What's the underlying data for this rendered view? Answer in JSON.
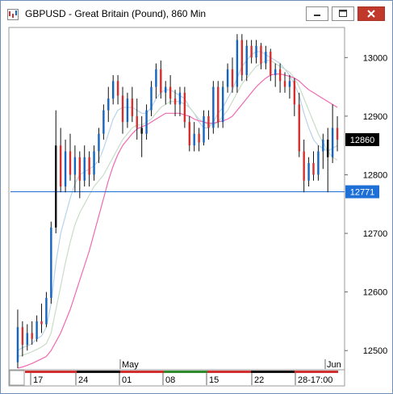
{
  "window": {
    "title": "GBPUSD - Great Britain (Pound), 860 Min"
  },
  "colors": {
    "up": "#1565c0",
    "down": "#d32f2f",
    "neutral": "#111111",
    "ma_fast": "#b9d3e8",
    "ma_mid": "#c9dcc9",
    "ma_slow": "#f06ab0",
    "hline": "#1e6fd6",
    "badge_current": "#000000",
    "badge_line": "#1e6fd6"
  },
  "chart_data": {
    "type": "candlestick",
    "y_ticks": [
      "13000",
      "12900",
      "12800",
      "12700",
      "12600",
      "12500"
    ],
    "ylim": [
      12470,
      13050
    ],
    "current_price_label": "12860",
    "current_price": 12860,
    "hline_label": "12771",
    "hline_price": 12771,
    "month_labels": [
      "May",
      "Jun"
    ],
    "date_labels": [
      "17",
      "24",
      "01",
      "08",
      "15",
      "22",
      "28-17:00"
    ],
    "bars": [
      {
        "o": 12480,
        "h": 12570,
        "l": 12470,
        "c": 12540,
        "d": "up"
      },
      {
        "o": 12540,
        "h": 12550,
        "l": 12490,
        "c": 12510,
        "d": "down"
      },
      {
        "o": 12510,
        "h": 12545,
        "l": 12500,
        "c": 12530,
        "d": "up"
      },
      {
        "o": 12530,
        "h": 12550,
        "l": 12510,
        "c": 12520,
        "d": "down"
      },
      {
        "o": 12520,
        "h": 12560,
        "l": 12515,
        "c": 12550,
        "d": "up"
      },
      {
        "o": 12550,
        "h": 12580,
        "l": 12530,
        "c": 12545,
        "d": "down"
      },
      {
        "o": 12545,
        "h": 12600,
        "l": 12540,
        "c": 12590,
        "d": "up"
      },
      {
        "o": 12590,
        "h": 12720,
        "l": 12580,
        "c": 12710,
        "d": "up"
      },
      {
        "o": 12710,
        "h": 12910,
        "l": 12700,
        "c": 12850,
        "d": "neutral"
      },
      {
        "o": 12850,
        "h": 12880,
        "l": 12770,
        "c": 12780,
        "d": "down"
      },
      {
        "o": 12780,
        "h": 12860,
        "l": 12770,
        "c": 12840,
        "d": "up"
      },
      {
        "o": 12840,
        "h": 12870,
        "l": 12790,
        "c": 12800,
        "d": "down"
      },
      {
        "o": 12800,
        "h": 12850,
        "l": 12770,
        "c": 12830,
        "d": "up"
      },
      {
        "o": 12830,
        "h": 12840,
        "l": 12760,
        "c": 12790,
        "d": "down"
      },
      {
        "o": 12790,
        "h": 12850,
        "l": 12780,
        "c": 12830,
        "d": "up"
      },
      {
        "o": 12830,
        "h": 12840,
        "l": 12780,
        "c": 12800,
        "d": "down"
      },
      {
        "o": 12800,
        "h": 12850,
        "l": 12790,
        "c": 12840,
        "d": "up"
      },
      {
        "o": 12840,
        "h": 12880,
        "l": 12820,
        "c": 12870,
        "d": "up"
      },
      {
        "o": 12870,
        "h": 12920,
        "l": 12860,
        "c": 12910,
        "d": "up"
      },
      {
        "o": 12910,
        "h": 12950,
        "l": 12890,
        "c": 12930,
        "d": "up"
      },
      {
        "o": 12930,
        "h": 12970,
        "l": 12920,
        "c": 12960,
        "d": "up"
      },
      {
        "o": 12960,
        "h": 12970,
        "l": 12920,
        "c": 12935,
        "d": "down"
      },
      {
        "o": 12935,
        "h": 12950,
        "l": 12870,
        "c": 12890,
        "d": "down"
      },
      {
        "o": 12890,
        "h": 12940,
        "l": 12880,
        "c": 12930,
        "d": "up"
      },
      {
        "o": 12930,
        "h": 12950,
        "l": 12890,
        "c": 12900,
        "d": "down"
      },
      {
        "o": 12900,
        "h": 12930,
        "l": 12860,
        "c": 12880,
        "d": "down"
      },
      {
        "o": 12880,
        "h": 12900,
        "l": 12830,
        "c": 12870,
        "d": "neutral"
      },
      {
        "o": 12870,
        "h": 12920,
        "l": 12860,
        "c": 12910,
        "d": "up"
      },
      {
        "o": 12910,
        "h": 12960,
        "l": 12900,
        "c": 12950,
        "d": "up"
      },
      {
        "o": 12950,
        "h": 12990,
        "l": 12930,
        "c": 12980,
        "d": "up"
      },
      {
        "o": 12980,
        "h": 12995,
        "l": 12930,
        "c": 12940,
        "d": "down"
      },
      {
        "o": 12940,
        "h": 12960,
        "l": 12920,
        "c": 12950,
        "d": "up"
      },
      {
        "o": 12950,
        "h": 12970,
        "l": 12920,
        "c": 12930,
        "d": "down"
      },
      {
        "o": 12930,
        "h": 12945,
        "l": 12900,
        "c": 12920,
        "d": "down"
      },
      {
        "o": 12920,
        "h": 12950,
        "l": 12900,
        "c": 12940,
        "d": "up"
      },
      {
        "o": 12940,
        "h": 12950,
        "l": 12880,
        "c": 12890,
        "d": "down"
      },
      {
        "o": 12890,
        "h": 12900,
        "l": 12840,
        "c": 12850,
        "d": "down"
      },
      {
        "o": 12850,
        "h": 12890,
        "l": 12840,
        "c": 12870,
        "d": "up"
      },
      {
        "o": 12870,
        "h": 12880,
        "l": 12840,
        "c": 12855,
        "d": "down"
      },
      {
        "o": 12855,
        "h": 12910,
        "l": 12850,
        "c": 12900,
        "d": "up"
      },
      {
        "o": 12900,
        "h": 12910,
        "l": 12860,
        "c": 12880,
        "d": "down"
      },
      {
        "o": 12880,
        "h": 12960,
        "l": 12870,
        "c": 12950,
        "d": "up"
      },
      {
        "o": 12950,
        "h": 12960,
        "l": 12880,
        "c": 12890,
        "d": "down"
      },
      {
        "o": 12890,
        "h": 12960,
        "l": 12880,
        "c": 12950,
        "d": "up"
      },
      {
        "o": 12950,
        "h": 12990,
        "l": 12940,
        "c": 12980,
        "d": "up"
      },
      {
        "o": 12980,
        "h": 13000,
        "l": 12940,
        "c": 12950,
        "d": "down"
      },
      {
        "o": 12950,
        "h": 13040,
        "l": 12940,
        "c": 13030,
        "d": "up"
      },
      {
        "o": 13030,
        "h": 13040,
        "l": 12960,
        "c": 12970,
        "d": "down"
      },
      {
        "o": 12970,
        "h": 13030,
        "l": 12960,
        "c": 13020,
        "d": "up"
      },
      {
        "o": 13020,
        "h": 13030,
        "l": 12990,
        "c": 13000,
        "d": "down"
      },
      {
        "o": 13000,
        "h": 13030,
        "l": 12990,
        "c": 13020,
        "d": "up"
      },
      {
        "o": 13020,
        "h": 13025,
        "l": 12980,
        "c": 12990,
        "d": "down"
      },
      {
        "o": 12990,
        "h": 13020,
        "l": 12980,
        "c": 13010,
        "d": "up"
      },
      {
        "o": 13010,
        "h": 13015,
        "l": 12960,
        "c": 12970,
        "d": "down"
      },
      {
        "o": 12970,
        "h": 12990,
        "l": 12950,
        "c": 12980,
        "d": "up"
      },
      {
        "o": 12980,
        "h": 12990,
        "l": 12940,
        "c": 12960,
        "d": "down"
      },
      {
        "o": 12960,
        "h": 12975,
        "l": 12940,
        "c": 12950,
        "d": "down"
      },
      {
        "o": 12950,
        "h": 12970,
        "l": 12930,
        "c": 12960,
        "d": "up"
      },
      {
        "o": 12960,
        "h": 12965,
        "l": 12900,
        "c": 12920,
        "d": "down"
      },
      {
        "o": 12920,
        "h": 12940,
        "l": 12830,
        "c": 12840,
        "d": "down"
      },
      {
        "o": 12840,
        "h": 12860,
        "l": 12770,
        "c": 12790,
        "d": "down"
      },
      {
        "o": 12790,
        "h": 12830,
        "l": 12780,
        "c": 12820,
        "d": "up"
      },
      {
        "o": 12820,
        "h": 12840,
        "l": 12790,
        "c": 12800,
        "d": "down"
      },
      {
        "o": 12800,
        "h": 12850,
        "l": 12790,
        "c": 12840,
        "d": "up"
      },
      {
        "o": 12840,
        "h": 12870,
        "l": 12810,
        "c": 12860,
        "d": "up"
      },
      {
        "o": 12860,
        "h": 12880,
        "l": 12770,
        "c": 12830,
        "d": "neutral"
      },
      {
        "o": 12830,
        "h": 12920,
        "l": 12820,
        "c": 12880,
        "d": "up"
      },
      {
        "o": 12880,
        "h": 12900,
        "l": 12840,
        "c": 12860,
        "d": "down"
      }
    ],
    "ma_fast": [
      12500,
      12505,
      12508,
      12512,
      12520,
      12525,
      12540,
      12580,
      12650,
      12700,
      12730,
      12760,
      12785,
      12800,
      12805,
      12810,
      12815,
      12825,
      12845,
      12870,
      12895,
      12910,
      12915,
      12915,
      12915,
      12910,
      12905,
      12905,
      12915,
      12930,
      12940,
      12945,
      12945,
      12940,
      12935,
      12930,
      12915,
      12905,
      12890,
      12880,
      12880,
      12890,
      12905,
      12915,
      12930,
      12945,
      12965,
      12985,
      12995,
      13005,
      13010,
      13010,
      13005,
      13000,
      12995,
      12990,
      12980,
      12970,
      12955,
      12935,
      12905,
      12880,
      12860,
      12850,
      12845,
      12840,
      12845,
      12850
    ],
    "ma_mid": [
      12490,
      12492,
      12495,
      12498,
      12502,
      12506,
      12512,
      12530,
      12570,
      12610,
      12650,
      12685,
      12715,
      12735,
      12750,
      12765,
      12780,
      12790,
      12800,
      12815,
      12830,
      12845,
      12860,
      12870,
      12880,
      12885,
      12885,
      12890,
      12895,
      12905,
      12915,
      12920,
      12925,
      12925,
      12925,
      12920,
      12915,
      12905,
      12895,
      12890,
      12885,
      12885,
      12890,
      12900,
      12910,
      12925,
      12940,
      12955,
      12965,
      12975,
      12985,
      12990,
      12995,
      12995,
      12990,
      12985,
      12980,
      12975,
      12965,
      12950,
      12930,
      12910,
      12890,
      12870,
      12855,
      12840,
      12830,
      12825
    ],
    "ma_slow": [
      12470,
      12472,
      12475,
      12478,
      12482,
      12486,
      12490,
      12500,
      12515,
      12530,
      12550,
      12570,
      12595,
      12620,
      12645,
      12670,
      12700,
      12730,
      12760,
      12790,
      12815,
      12835,
      12850,
      12860,
      12870,
      12878,
      12882,
      12885,
      12890,
      12895,
      12900,
      12905,
      12905,
      12905,
      12905,
      12902,
      12900,
      12895,
      12892,
      12890,
      12888,
      12888,
      12890,
      12892,
      12895,
      12900,
      12910,
      12920,
      12930,
      12940,
      12950,
      12958,
      12965,
      12970,
      12972,
      12972,
      12970,
      12968,
      12965,
      12960,
      12952,
      12945,
      12940,
      12935,
      12930,
      12925,
      12920,
      12915
    ]
  }
}
